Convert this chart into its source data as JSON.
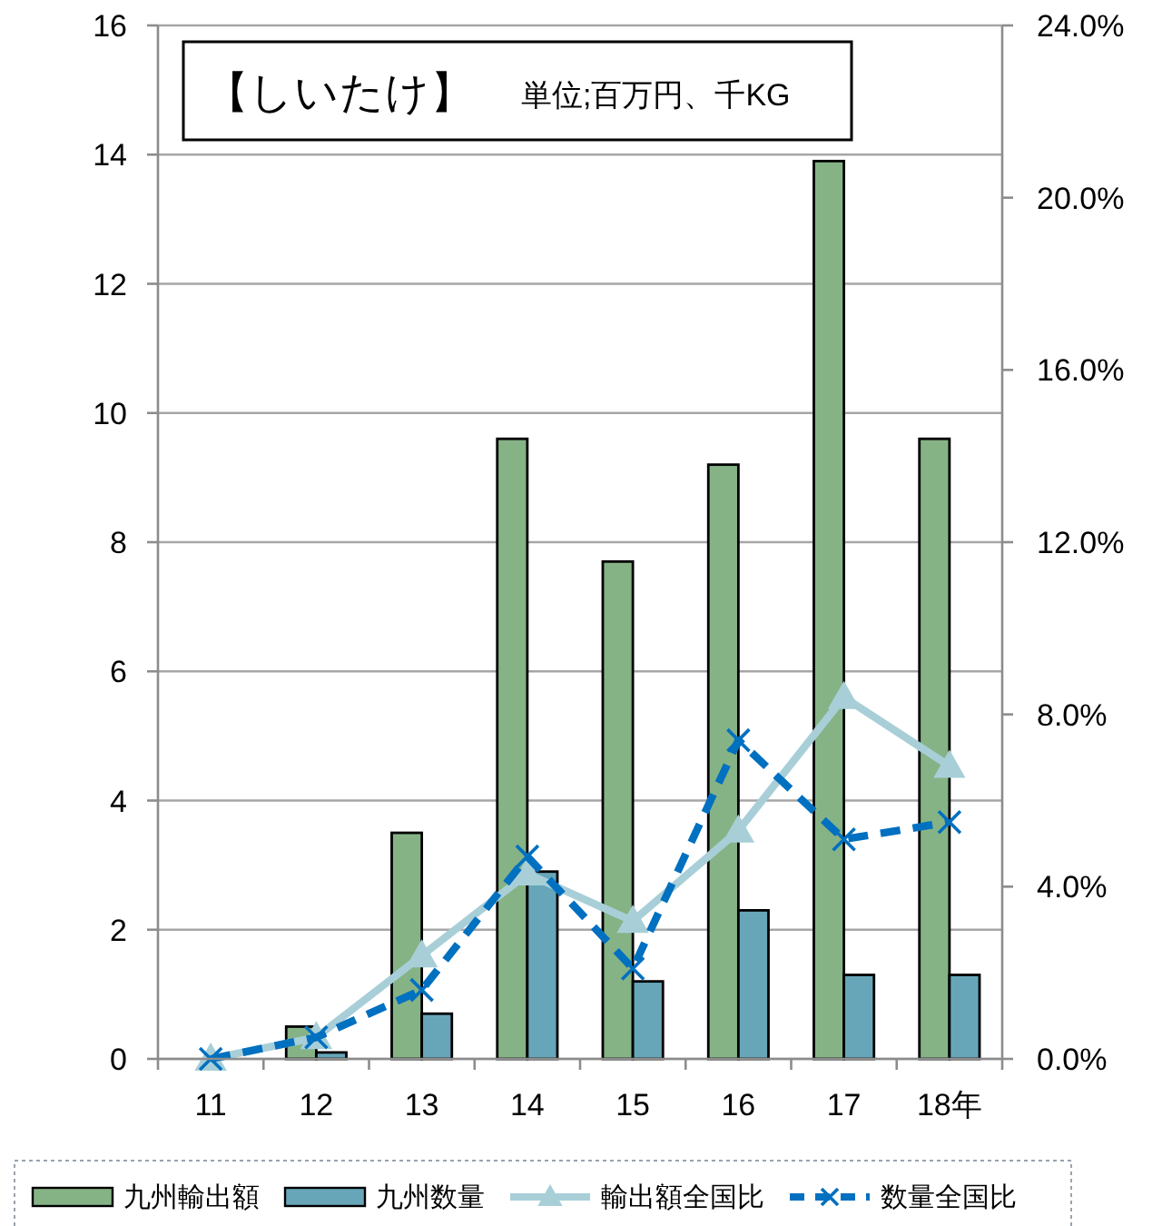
{
  "chart_data": {
    "type": "bar",
    "title": "【しいたけ】",
    "subtitle": "単位;百万円、千KG",
    "categories": [
      "11",
      "12",
      "13",
      "14",
      "15",
      "16",
      "17",
      "18年"
    ],
    "series": [
      {
        "name": "九州輸出額",
        "color": "#86b386",
        "values": [
          0,
          0.5,
          3.5,
          9.6,
          7.7,
          9.2,
          13.9,
          9.6
        ]
      },
      {
        "name": "九州数量",
        "color": "#67a6b9",
        "values": [
          0,
          0.1,
          0.7,
          2.9,
          1.2,
          2.3,
          1.3,
          1.3
        ]
      },
      {
        "name": "輸出額全国比",
        "type": "line",
        "axis": "y2",
        "color": "#a8cfd8",
        "marker": "triangle",
        "line_style": "solid",
        "values": [
          0,
          0.5,
          2.4,
          4.3,
          3.2,
          5.3,
          8.4,
          6.8
        ]
      },
      {
        "name": "数量全国比",
        "type": "line",
        "axis": "y2",
        "color": "#0070c0",
        "marker": "cross",
        "line_style": "dashed",
        "values": [
          0,
          0.5,
          1.6,
          4.7,
          2.1,
          7.4,
          5.1,
          5.5
        ]
      }
    ],
    "ylim": [
      0,
      16
    ],
    "yticks": [
      0,
      2,
      4,
      6,
      8,
      10,
      12,
      14,
      16
    ],
    "y2lim": [
      0,
      24
    ],
    "y2ticks": [
      {
        "value": 0,
        "label": "0.0%"
      },
      {
        "value": 4,
        "label": "4.0%"
      },
      {
        "value": 8,
        "label": "8.0%"
      },
      {
        "value": 12,
        "label": "12.0%"
      },
      {
        "value": 16,
        "label": "16.0%"
      },
      {
        "value": 20,
        "label": "20.0%"
      },
      {
        "value": 24,
        "label": "24.0%"
      }
    ],
    "grid": "y",
    "legend": "bottom"
  }
}
